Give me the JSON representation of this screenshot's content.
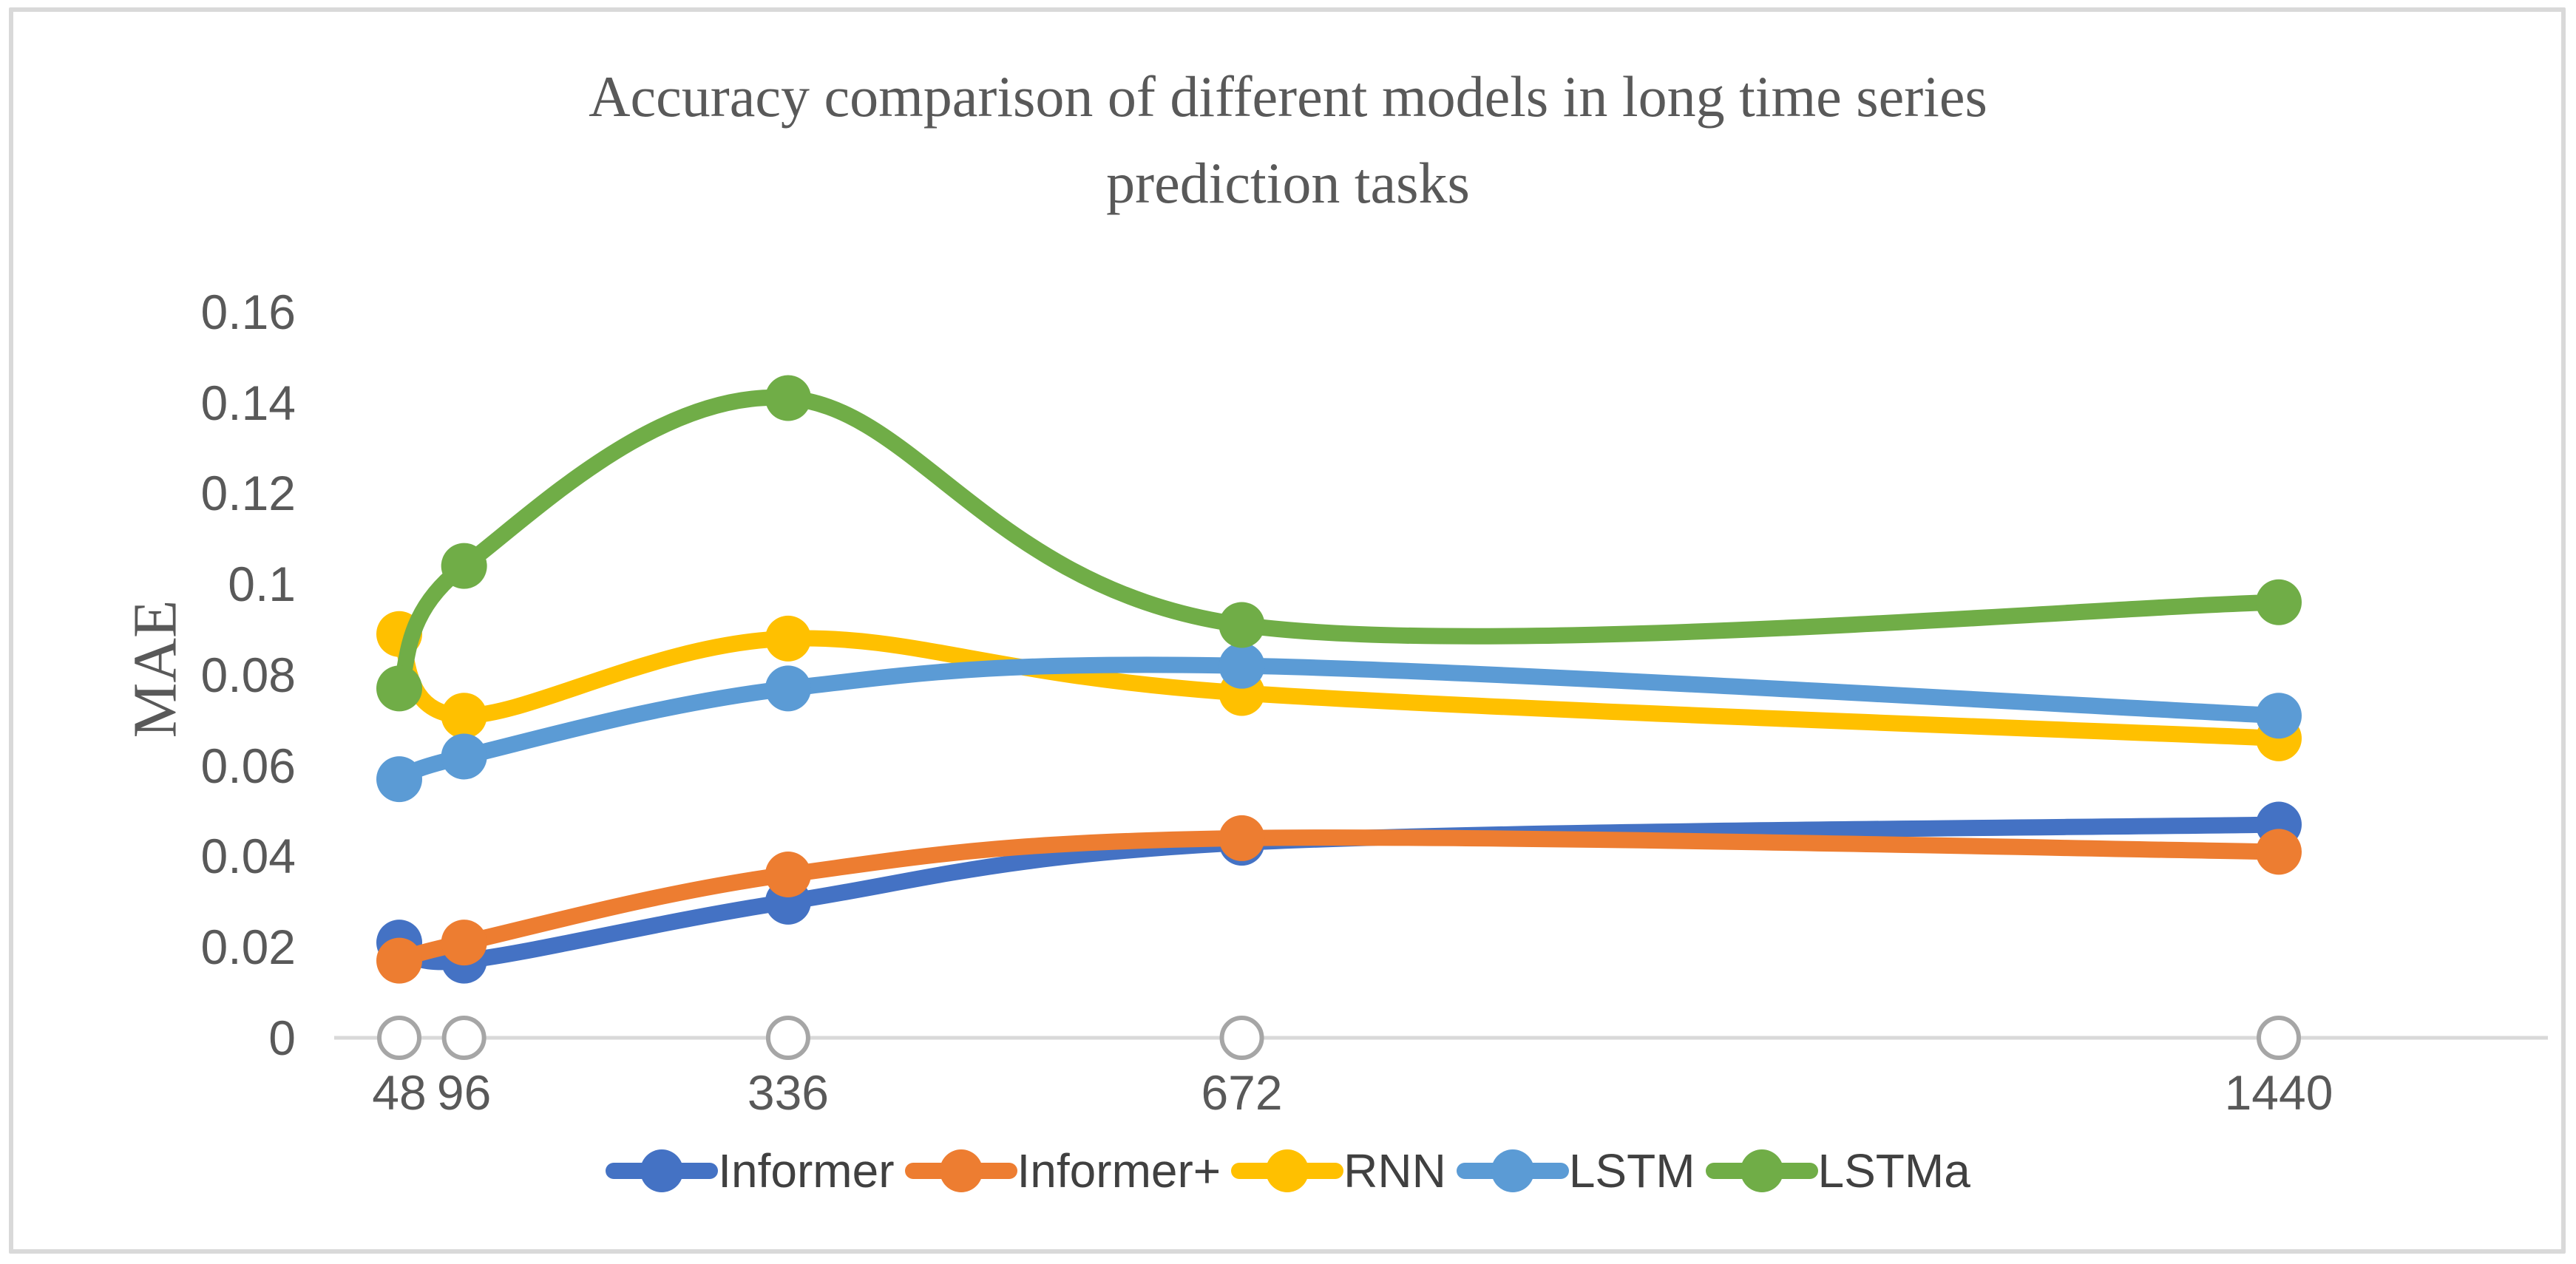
{
  "header": {
    "title_line1": "Accuracy comparison of different models in long time series",
    "title_line2": "prediction tasks"
  },
  "axes": {
    "y_label": "MAE",
    "y_ticks": [
      "0.16",
      "0.14",
      "0.12",
      "0.1",
      "0.08",
      "0.06",
      "0.04",
      "0.02",
      "0"
    ],
    "x_ticks": [
      "48",
      "96",
      "336",
      "672",
      "1440"
    ]
  },
  "chart_data": {
    "type": "line",
    "title": "Accuracy comparison of different models in long time series prediction tasks",
    "xlabel": "",
    "ylabel": "MAE",
    "x": [
      48,
      96,
      336,
      672,
      1440
    ],
    "ylim": [
      0,
      0.16
    ],
    "y_tick_step": 0.02,
    "grid": false,
    "smooth_lines": true,
    "legend_position": "bottom",
    "axis_line_color": "#D9D9D9",
    "series": [
      {
        "name": "Informer",
        "color": "#4472C4",
        "values": [
          0.021,
          0.017,
          0.03,
          0.043,
          0.047
        ]
      },
      {
        "name": "Informer+",
        "color": "#ED7D31",
        "values": [
          0.017,
          0.021,
          0.036,
          0.044,
          0.041
        ]
      },
      {
        "name": "RNN",
        "color": "#FFC000",
        "values": [
          0.089,
          0.071,
          0.088,
          0.076,
          0.066
        ]
      },
      {
        "name": "LSTM",
        "color": "#5B9BD5",
        "values": [
          0.057,
          0.062,
          0.077,
          0.082,
          0.071
        ]
      },
      {
        "name": "LSTMa",
        "color": "#70AD47",
        "values": [
          0.077,
          0.104,
          0.141,
          0.091,
          0.096
        ]
      }
    ],
    "baseline_markers": {
      "description": "hollow circles on x-axis at each x position",
      "color": "#A6A6A6",
      "fill": "#FFFFFF",
      "values": [
        0,
        0,
        0,
        0,
        0
      ]
    }
  }
}
